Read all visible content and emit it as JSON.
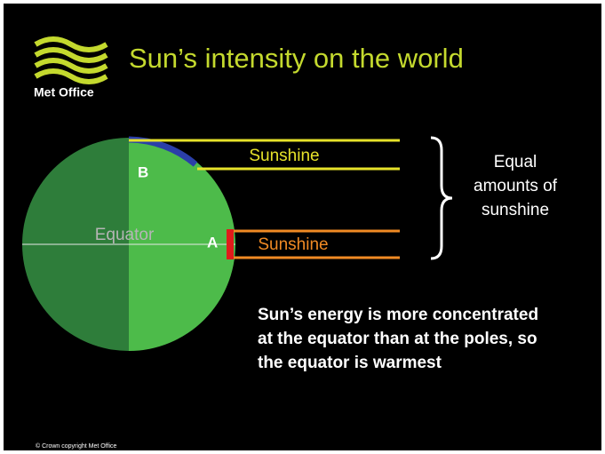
{
  "header": {
    "logo_text": "Met Office",
    "title": "Sun’s intensity on the world"
  },
  "diagram": {
    "point_b": "B",
    "point_a": "A",
    "equator": "Equator",
    "beam_top": "Sunshine",
    "beam_bottom": "Sunshine",
    "brace_note": [
      "Equal",
      "amounts of",
      "sunshine"
    ]
  },
  "caption": [
    "Sun’s energy is more concentrated",
    "at the equator than at the poles, so",
    "the equator is warmest"
  ],
  "footer": "© Crown copyright  Met Office"
}
